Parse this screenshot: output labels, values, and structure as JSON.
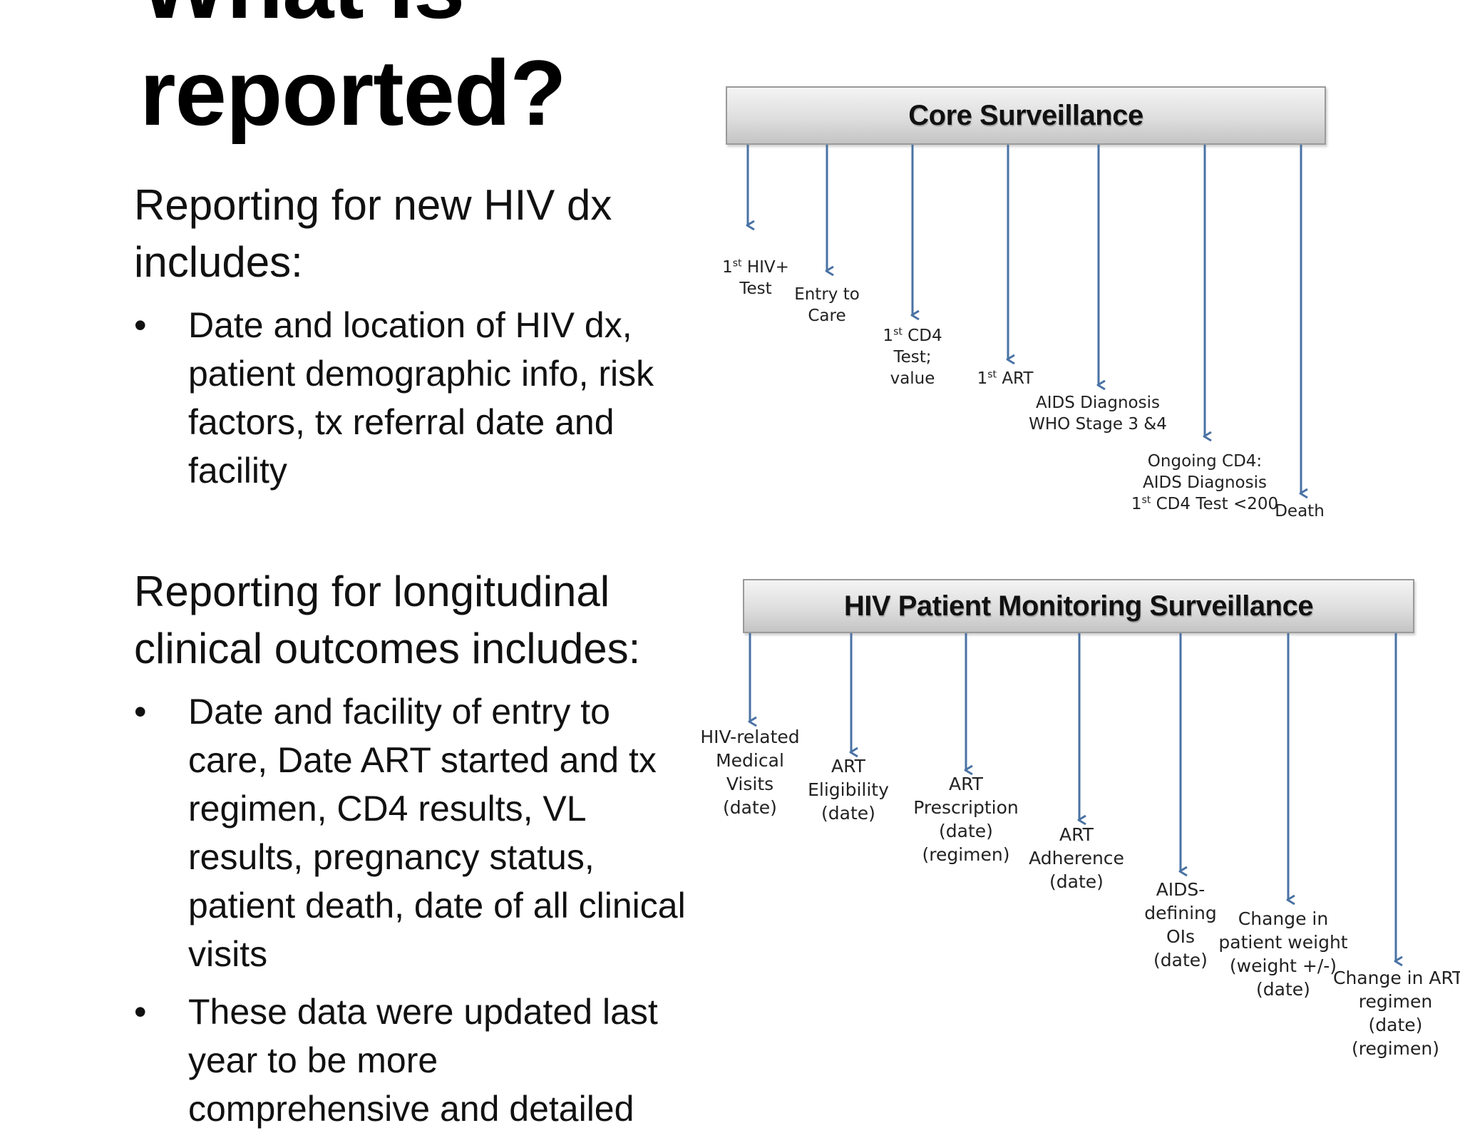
{
  "title": "What is\nreported?",
  "left": {
    "section1": {
      "lead": "Reporting for new HIV dx includes:",
      "bullets": [
        "Date and location of HIV dx, patient demographic info, risk factors, tx referral date and facility"
      ]
    },
    "section2": {
      "lead": "Reporting for longitudinal clinical outcomes includes:",
      "bullets": [
        "Date and facility of entry to care, Date ART started and tx regimen, CD4 results, VL results, pregnancy status, patient death, date of all clinical visits",
        "These data were updated last year to be more comprehensive and detailed"
      ]
    }
  },
  "diagram1": {
    "banner": "Core Surveillance",
    "nodes": [
      {
        "lines": [
          "1|st| HIV+",
          "Test"
        ]
      },
      {
        "lines": [
          "Entry to",
          "Care"
        ]
      },
      {
        "lines": [
          "1|st| CD4",
          "Test;",
          "value"
        ]
      },
      {
        "lines": [
          "1|st| ART"
        ]
      },
      {
        "lines": [
          "AIDS Diagnosis",
          "WHO Stage 3 &4"
        ]
      },
      {
        "lines": [
          "Ongoing CD4:",
          "AIDS Diagnosis",
          "1|st| CD4 Test <200"
        ]
      },
      {
        "lines": [
          "Death"
        ]
      }
    ]
  },
  "diagram2": {
    "banner": "HIV Patient Monitoring Surveillance",
    "nodes": [
      {
        "lines": [
          "HIV-related",
          "Medical",
          "Visits",
          "(date)"
        ]
      },
      {
        "lines": [
          "ART",
          "Eligibility",
          "(date)"
        ]
      },
      {
        "lines": [
          "ART",
          "Prescription",
          "(date)",
          "(regimen)"
        ]
      },
      {
        "lines": [
          "ART",
          "Adherence",
          "(date)"
        ]
      },
      {
        "lines": [
          "AIDS-",
          "defining",
          "OIs",
          "(date)"
        ]
      },
      {
        "lines": [
          "Change in",
          "patient weight",
          "(weight +/-)",
          "(date)"
        ]
      },
      {
        "lines": [
          "Change in ART",
          "regimen",
          "(date)",
          "(regimen)"
        ]
      }
    ]
  },
  "colors": {
    "arrow": "#4a72a4",
    "text": "#111111"
  }
}
